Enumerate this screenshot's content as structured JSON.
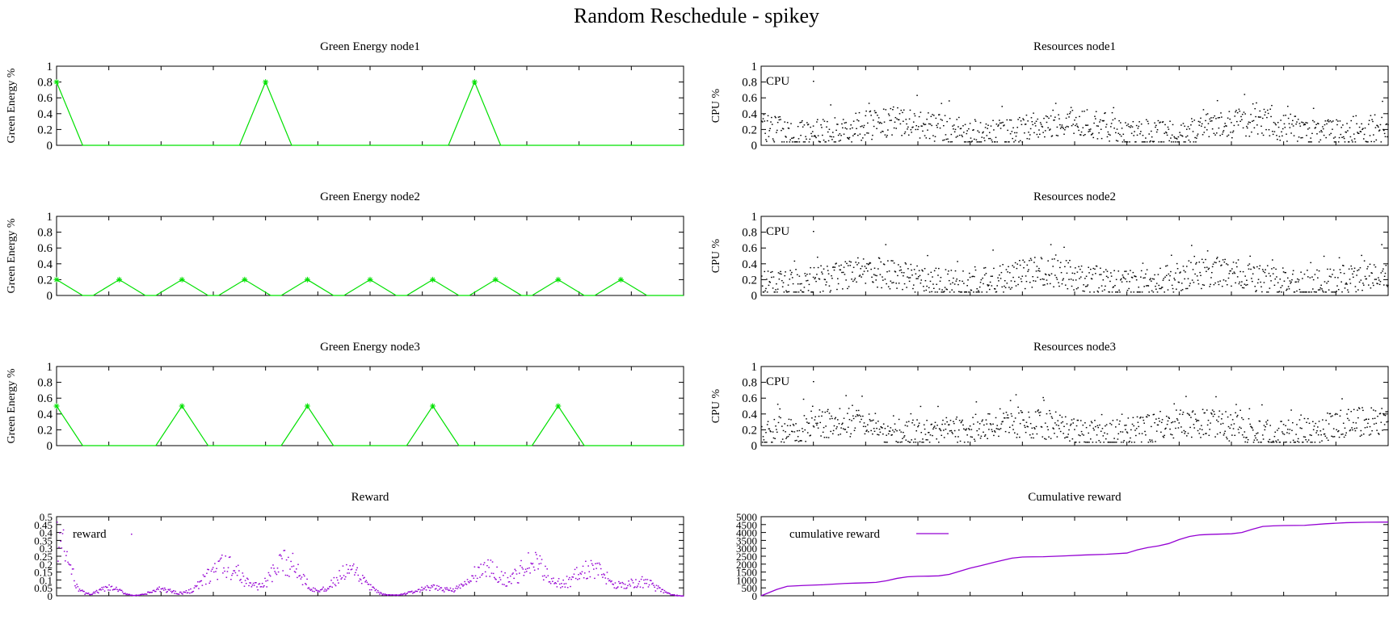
{
  "title": "Random Reschedule - spikey",
  "colors": {
    "green": "#00e000",
    "black": "#000000",
    "purple": "#9400d3"
  },
  "chart_data": [
    {
      "type": "line",
      "title": "Green Energy node1",
      "ylabel": "Green Energy %",
      "ylim": [
        0,
        1
      ],
      "yticks": [
        "0",
        "0.2",
        "0.4",
        "0.6",
        "0.8",
        "1"
      ],
      "xlim": [
        0,
        120
      ],
      "marker": "star",
      "x": [
        0,
        5,
        35,
        40,
        45,
        75,
        80,
        85,
        120
      ],
      "y": [
        0.8,
        0,
        0,
        0.8,
        0,
        0,
        0.8,
        0,
        0
      ]
    },
    {
      "type": "line",
      "title": "Green Energy node2",
      "ylabel": "Green Energy %",
      "ylim": [
        0,
        1
      ],
      "yticks": [
        "0",
        "0.2",
        "0.4",
        "0.6",
        "0.8",
        "1"
      ],
      "xlim": [
        0,
        120
      ],
      "marker": "star",
      "x": [
        0,
        5,
        7,
        12,
        17,
        19,
        24,
        29,
        31,
        36,
        41,
        43,
        48,
        53,
        55,
        60,
        65,
        67,
        72,
        77,
        79,
        84,
        89,
        91,
        96,
        101,
        103,
        108,
        113,
        120
      ],
      "y": [
        0.2,
        0,
        0,
        0.2,
        0,
        0,
        0.2,
        0,
        0,
        0.2,
        0,
        0,
        0.2,
        0,
        0,
        0.2,
        0,
        0,
        0.2,
        0,
        0,
        0.2,
        0,
        0,
        0.2,
        0,
        0,
        0.2,
        0,
        0
      ]
    },
    {
      "type": "line",
      "title": "Green Energy node3",
      "ylabel": "Green Energy %",
      "ylim": [
        0,
        1
      ],
      "yticks": [
        "0",
        "0.2",
        "0.4",
        "0.6",
        "0.8",
        "1"
      ],
      "xlim": [
        0,
        120
      ],
      "marker": "star",
      "x": [
        0,
        5,
        19,
        24,
        29,
        43,
        48,
        53,
        67,
        72,
        77,
        91,
        96,
        101,
        120
      ],
      "y": [
        0.5,
        0,
        0,
        0.5,
        0,
        0,
        0.5,
        0,
        0,
        0.5,
        0,
        0,
        0.5,
        0,
        0
      ]
    },
    {
      "type": "scatter",
      "title": "Resources node1",
      "ylabel": "CPU %",
      "ylim": [
        0,
        1
      ],
      "yticks": [
        "0",
        "0.2",
        "0.4",
        "0.6",
        "0.8",
        "1"
      ],
      "xlim": [
        0,
        120
      ],
      "series": [
        {
          "name": "CPU",
          "approx_range": [
            0.05,
            0.65
          ]
        }
      ]
    },
    {
      "type": "scatter",
      "title": "Resources node2",
      "ylabel": "CPU %",
      "ylim": [
        0,
        1
      ],
      "yticks": [
        "0",
        "0.2",
        "0.4",
        "0.6",
        "0.8",
        "1"
      ],
      "xlim": [
        0,
        120
      ],
      "series": [
        {
          "name": "CPU",
          "approx_range": [
            0.05,
            0.65
          ]
        }
      ]
    },
    {
      "type": "scatter",
      "title": "Resources node3",
      "ylabel": "CPU %",
      "ylim": [
        0,
        1
      ],
      "yticks": [
        "0",
        "0.2",
        "0.4",
        "0.6",
        "0.8",
        "1"
      ],
      "xlim": [
        0,
        120
      ],
      "series": [
        {
          "name": "CPU",
          "approx_range": [
            0.05,
            0.65
          ]
        }
      ]
    },
    {
      "type": "scatter",
      "title": "Reward",
      "ylim": [
        0,
        0.5
      ],
      "yticks": [
        "0",
        "0.05",
        "0.1",
        "0.15",
        "0.2",
        "0.25",
        "0.3",
        "0.35",
        "0.4",
        "0.45",
        "0.5"
      ],
      "xlim": [
        0,
        120
      ],
      "series": [
        {
          "name": "reward",
          "approx_range": [
            0,
            0.45
          ]
        }
      ]
    },
    {
      "type": "line",
      "title": "Cumulative reward",
      "ylim": [
        0,
        5000
      ],
      "yticks": [
        "0",
        "500",
        "1000",
        "1500",
        "2000",
        "2500",
        "3000",
        "3500",
        "4000",
        "4500",
        "5000"
      ],
      "xlim": [
        0,
        120
      ],
      "series": [
        {
          "name": "cumulative reward",
          "x": [
            0,
            3,
            5,
            8,
            12,
            16,
            18,
            20,
            22,
            24,
            26,
            28,
            30,
            32,
            34,
            36,
            38,
            40,
            42,
            45,
            48,
            50,
            52,
            54,
            58,
            62,
            66,
            70,
            72,
            74,
            76,
            78,
            80,
            82,
            84,
            86,
            88,
            90,
            92,
            94,
            96,
            98,
            100,
            104,
            108,
            112,
            116,
            120
          ],
          "y": [
            0,
            400,
            600,
            650,
            700,
            780,
            800,
            820,
            850,
            950,
            1100,
            1200,
            1230,
            1240,
            1260,
            1350,
            1550,
            1750,
            1900,
            2150,
            2380,
            2450,
            2460,
            2470,
            2520,
            2580,
            2620,
            2700,
            2900,
            3050,
            3150,
            3300,
            3550,
            3750,
            3850,
            3880,
            3900,
            3920,
            4000,
            4200,
            4380,
            4420,
            4440,
            4450,
            4550,
            4620,
            4650,
            4660
          ]
        }
      ]
    }
  ]
}
